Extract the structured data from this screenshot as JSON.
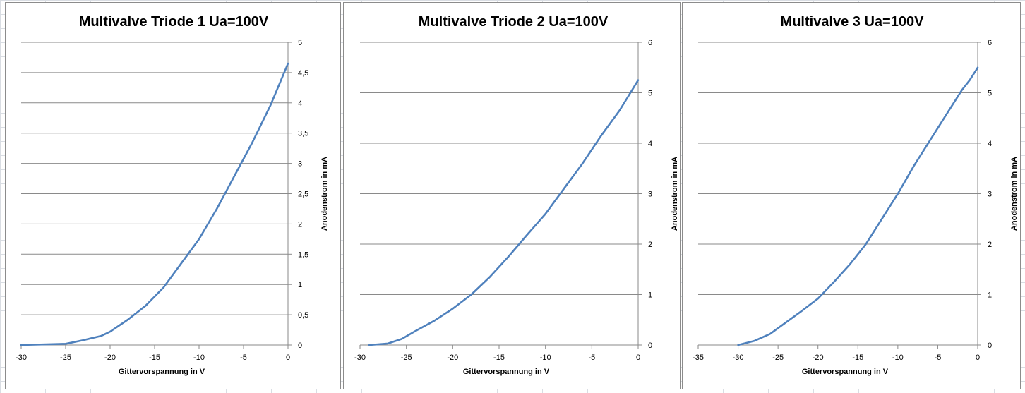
{
  "colors": {
    "series": "#4f81bd",
    "grid": "#8a8a8a",
    "sheet_grid": "#d9dde3"
  },
  "chart_data": [
    {
      "type": "line",
      "title": "Multivalve Triode 1 Ua=100V",
      "xlabel": "Gittervorspannung  in V",
      "ylabel": "Anodenstrom  in  mA",
      "xlim": [
        -30,
        0
      ],
      "ylim": [
        0,
        5
      ],
      "xticks": [
        -30,
        -25,
        -20,
        -15,
        -10,
        -5,
        0
      ],
      "xtick_labels": [
        "-30",
        "-25",
        "-20",
        "-15",
        "-10",
        "-5",
        "0"
      ],
      "yticks": [
        0,
        0.5,
        1,
        1.5,
        2,
        2.5,
        3,
        3.5,
        4,
        4.5,
        5
      ],
      "ytick_labels": [
        "0",
        "0,5",
        "1",
        "1,5",
        "2",
        "2,5",
        "3",
        "3,5",
        "4",
        "4,5",
        "5"
      ],
      "grid": true,
      "y_axis_side": "right",
      "series": [
        {
          "x": [
            -30,
            -25,
            -23,
            -21,
            -20,
            -18,
            -16,
            -14,
            -12,
            -10,
            -8,
            -6,
            -4,
            -2,
            -1,
            0
          ],
          "y": [
            0,
            0.02,
            0.08,
            0.15,
            0.22,
            0.42,
            0.65,
            0.95,
            1.35,
            1.75,
            2.25,
            2.8,
            3.35,
            3.95,
            4.3,
            4.65
          ]
        }
      ]
    },
    {
      "type": "line",
      "title": "Multivalve Triode 2 Ua=100V",
      "xlabel": "Gittervorspannung  in V",
      "ylabel": "Anodenstrom  in  mA",
      "xlim": [
        -30,
        0
      ],
      "ylim": [
        0,
        6
      ],
      "xticks": [
        -30,
        -25,
        -20,
        -15,
        -10,
        -5,
        0
      ],
      "xtick_labels": [
        "-30",
        "-25",
        "-20",
        "-15",
        "-10",
        "-5",
        "0"
      ],
      "yticks": [
        0,
        1,
        2,
        3,
        4,
        5,
        6
      ],
      "ytick_labels": [
        "0",
        "1",
        "2",
        "3",
        "4",
        "5",
        "6"
      ],
      "grid": true,
      "y_axis_side": "right",
      "series": [
        {
          "x": [
            -29,
            -27,
            -25.5,
            -24,
            -22,
            -20,
            -18,
            -16,
            -14,
            -12,
            -10,
            -8,
            -6,
            -4,
            -2,
            0
          ],
          "y": [
            0,
            0.03,
            0.12,
            0.28,
            0.48,
            0.72,
            1.0,
            1.35,
            1.75,
            2.18,
            2.6,
            3.1,
            3.6,
            4.15,
            4.65,
            5.25
          ]
        }
      ]
    },
    {
      "type": "line",
      "title": "Multivalve 3 Ua=100V",
      "xlabel": "Gittervorspannung  in V",
      "ylabel": "Anodenstrom  in  mA",
      "xlim": [
        -35,
        0
      ],
      "ylim": [
        0,
        6
      ],
      "xticks": [
        -35,
        -30,
        -25,
        -20,
        -15,
        -10,
        -5,
        0
      ],
      "xtick_labels": [
        "-35",
        "-30",
        "-25",
        "-20",
        "-15",
        "-10",
        "-5",
        "0"
      ],
      "yticks": [
        0,
        1,
        2,
        3,
        4,
        5,
        6
      ],
      "ytick_labels": [
        "0",
        "1",
        "2",
        "3",
        "4",
        "5",
        "6"
      ],
      "grid": true,
      "y_axis_side": "right",
      "series": [
        {
          "x": [
            -30,
            -28,
            -26,
            -24,
            -22,
            -20,
            -18,
            -16,
            -14,
            -12,
            -10,
            -8,
            -6,
            -4,
            -2,
            -1,
            0
          ],
          "y": [
            0,
            0.08,
            0.22,
            0.45,
            0.68,
            0.92,
            1.25,
            1.6,
            2.0,
            2.5,
            3.0,
            3.55,
            4.05,
            4.55,
            5.05,
            5.25,
            5.5
          ]
        }
      ]
    }
  ]
}
